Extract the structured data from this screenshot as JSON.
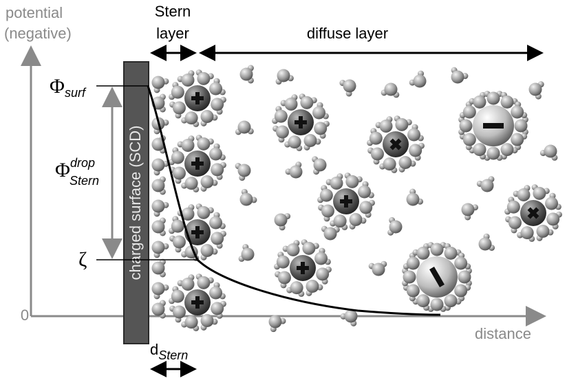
{
  "axes": {
    "y_label": [
      "potential",
      "(negative)"
    ],
    "x_label": "distance",
    "origin": "0"
  },
  "surface": "charged surface (SCD)",
  "stern_layer": [
    "Stern",
    "layer"
  ],
  "diffuse_layer": "diffuse layer",
  "phi_surf": {
    "symbol": "Φ",
    "sub": "surf"
  },
  "phi_drop": {
    "symbol": "Φ",
    "sup": "drop",
    "sub": "Stern"
  },
  "zeta": "ζ",
  "d_stern": {
    "symbol": "d",
    "sub": "Stern"
  }
}
